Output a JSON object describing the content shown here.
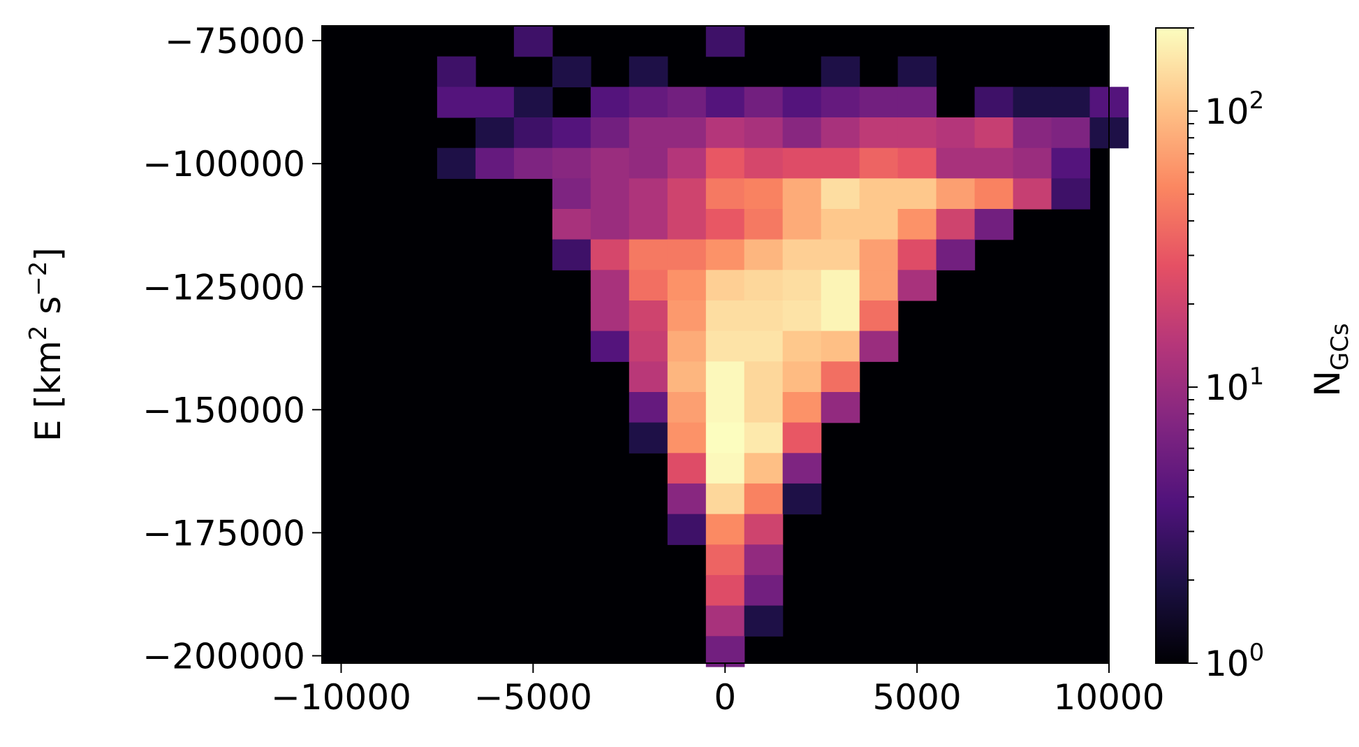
{
  "chart_data": {
    "type": "heatmap",
    "title": "",
    "xlabel": "",
    "ylabel": "E [km² s⁻²]",
    "ylabel_parts": {
      "pre": "E [km",
      "sup1": "2",
      "mid": " s",
      "sup2": "−2",
      "post": "]"
    },
    "xlim": [
      -10500,
      10000
    ],
    "ylim": [
      -201500,
      -72000
    ],
    "x_ticks": [
      {
        "value": -10000,
        "label": "−10000"
      },
      {
        "value": -5000,
        "label": "−5000"
      },
      {
        "value": 0,
        "label": "0"
      },
      {
        "value": 5000,
        "label": "5000"
      },
      {
        "value": 10000,
        "label": "10000"
      }
    ],
    "y_ticks": [
      {
        "value": -75000,
        "label": "−75000"
      },
      {
        "value": -100000,
        "label": "−100000"
      },
      {
        "value": -125000,
        "label": "−125000"
      },
      {
        "value": -150000,
        "label": "−150000"
      },
      {
        "value": -175000,
        "label": "−175000"
      },
      {
        "value": -200000,
        "label": "−200000"
      }
    ],
    "x_bin_start": -10500,
    "x_bin_width": 1000,
    "y_bin_top": -72000,
    "y_bin_height": 6200,
    "background": "#000004",
    "colormap": "magma",
    "color_scale": "log",
    "colorbar": {
      "label_main": "N",
      "label_sub": "GCs",
      "min": 1,
      "max": 200,
      "ticks": [
        {
          "value": 1,
          "base": "10",
          "exp": "0"
        },
        {
          "value": 10,
          "base": "10",
          "exp": "1"
        },
        {
          "value": 100,
          "base": "10",
          "exp": "2"
        }
      ],
      "minor_ticks": [
        2,
        3,
        4,
        5,
        6,
        7,
        8,
        9,
        20,
        30,
        40,
        50,
        60,
        70,
        80,
        90,
        200
      ]
    },
    "bins_note": "each row: [row_index, [x_index, count], ...]",
    "rows": [
      [
        0,
        [
          5,
          3
        ],
        [
          10,
          3
        ]
      ],
      [
        1,
        [
          3,
          3
        ],
        [
          6,
          2
        ],
        [
          8,
          2
        ],
        [
          13,
          2
        ],
        [
          15,
          2
        ]
      ],
      [
        2,
        [
          3,
          4
        ],
        [
          4,
          4
        ],
        [
          5,
          2
        ],
        [
          7,
          4
        ],
        [
          8,
          5
        ],
        [
          9,
          6
        ],
        [
          10,
          4
        ],
        [
          11,
          6
        ],
        [
          12,
          4
        ],
        [
          13,
          5
        ],
        [
          14,
          6
        ],
        [
          15,
          6
        ],
        [
          17,
          3
        ],
        [
          18,
          2
        ],
        [
          19,
          2
        ],
        [
          20,
          4
        ]
      ],
      [
        3,
        [
          4,
          2
        ],
        [
          5,
          3
        ],
        [
          6,
          4
        ],
        [
          7,
          6
        ],
        [
          8,
          9
        ],
        [
          9,
          9
        ],
        [
          10,
          14
        ],
        [
          11,
          12
        ],
        [
          12,
          8
        ],
        [
          13,
          12
        ],
        [
          14,
          16
        ],
        [
          15,
          16
        ],
        [
          16,
          14
        ],
        [
          17,
          18
        ],
        [
          18,
          8
        ],
        [
          19,
          7
        ],
        [
          20,
          2
        ]
      ],
      [
        4,
        [
          3,
          2
        ],
        [
          4,
          5
        ],
        [
          5,
          7
        ],
        [
          6,
          8
        ],
        [
          7,
          10
        ],
        [
          8,
          9
        ],
        [
          9,
          14
        ],
        [
          10,
          30
        ],
        [
          11,
          22
        ],
        [
          12,
          25
        ],
        [
          13,
          25
        ],
        [
          14,
          35
        ],
        [
          15,
          30
        ],
        [
          16,
          12
        ],
        [
          17,
          12
        ],
        [
          18,
          10
        ],
        [
          19,
          4
        ]
      ],
      [
        5,
        [
          6,
          7
        ],
        [
          7,
          10
        ],
        [
          8,
          13
        ],
        [
          9,
          20
        ],
        [
          10,
          45
        ],
        [
          11,
          50
        ],
        [
          12,
          80
        ],
        [
          13,
          140
        ],
        [
          14,
          110
        ],
        [
          15,
          110
        ],
        [
          16,
          70
        ],
        [
          17,
          50
        ],
        [
          18,
          18
        ],
        [
          19,
          3
        ]
      ],
      [
        6,
        [
          6,
          12
        ],
        [
          7,
          10
        ],
        [
          8,
          13
        ],
        [
          9,
          20
        ],
        [
          10,
          30
        ],
        [
          11,
          45
        ],
        [
          12,
          80
        ],
        [
          13,
          110
        ],
        [
          14,
          110
        ],
        [
          15,
          60
        ],
        [
          16,
          20
        ],
        [
          17,
          6
        ]
      ],
      [
        7,
        [
          6,
          3
        ],
        [
          7,
          22
        ],
        [
          8,
          45
        ],
        [
          9,
          45
        ],
        [
          10,
          60
        ],
        [
          11,
          90
        ],
        [
          12,
          120
        ],
        [
          13,
          120
        ],
        [
          14,
          70
        ],
        [
          15,
          25
        ],
        [
          16,
          6
        ]
      ],
      [
        8,
        [
          7,
          12
        ],
        [
          8,
          40
        ],
        [
          9,
          60
        ],
        [
          10,
          120
        ],
        [
          11,
          130
        ],
        [
          12,
          140
        ],
        [
          13,
          180
        ],
        [
          14,
          70
        ],
        [
          15,
          12
        ]
      ],
      [
        9,
        [
          7,
          12
        ],
        [
          8,
          20
        ],
        [
          9,
          65
        ],
        [
          10,
          140
        ],
        [
          11,
          140
        ],
        [
          12,
          150
        ],
        [
          13,
          180
        ],
        [
          14,
          40
        ]
      ],
      [
        10,
        [
          7,
          4
        ],
        [
          8,
          18
        ],
        [
          9,
          80
        ],
        [
          10,
          150
        ],
        [
          11,
          150
        ],
        [
          12,
          110
        ],
        [
          13,
          100
        ],
        [
          14,
          10
        ]
      ],
      [
        11,
        [
          8,
          15
        ],
        [
          9,
          90
        ],
        [
          10,
          190
        ],
        [
          11,
          130
        ],
        [
          12,
          95
        ],
        [
          13,
          40
        ]
      ],
      [
        12,
        [
          8,
          5
        ],
        [
          9,
          70
        ],
        [
          10,
          190
        ],
        [
          11,
          130
        ],
        [
          12,
          60
        ],
        [
          13,
          9
        ]
      ],
      [
        13,
        [
          8,
          2
        ],
        [
          9,
          60
        ],
        [
          10,
          200
        ],
        [
          11,
          160
        ],
        [
          12,
          30
        ]
      ],
      [
        14,
        [
          9,
          25
        ],
        [
          10,
          190
        ],
        [
          11,
          100
        ],
        [
          12,
          7
        ]
      ],
      [
        15,
        [
          9,
          8
        ],
        [
          10,
          130
        ],
        [
          11,
          50
        ],
        [
          12,
          2
        ]
      ],
      [
        16,
        [
          9,
          3
        ],
        [
          10,
          55
        ],
        [
          11,
          20
        ]
      ],
      [
        17,
        [
          10,
          35
        ],
        [
          11,
          9
        ]
      ],
      [
        18,
        [
          10,
          25
        ],
        [
          11,
          6
        ]
      ],
      [
        19,
        [
          10,
          12
        ],
        [
          11,
          2
        ]
      ],
      [
        20,
        [
          10,
          6
        ]
      ]
    ]
  }
}
